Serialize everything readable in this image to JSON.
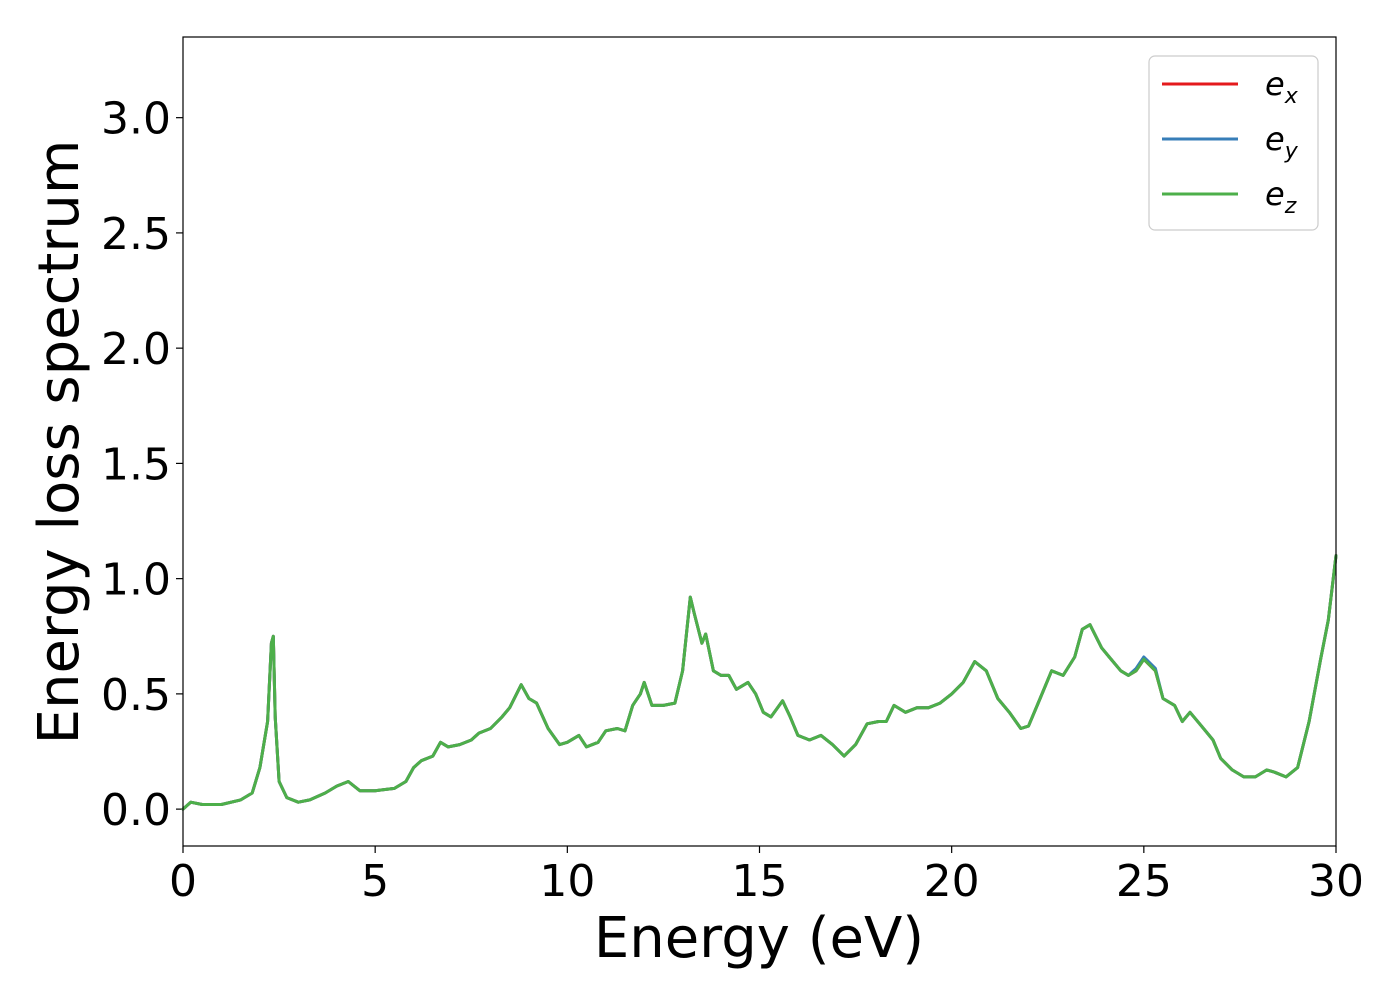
{
  "chart_data": {
    "type": "line",
    "title": "",
    "xlabel": "Energy (eV)",
    "ylabel": "Energy loss spectrum",
    "xlim": [
      0,
      30
    ],
    "ylim": [
      -0.16,
      3.35
    ],
    "xticks": [
      0,
      5,
      10,
      15,
      20,
      25,
      30
    ],
    "xtick_labels": [
      "0",
      "5",
      "10",
      "15",
      "20",
      "25",
      "30"
    ],
    "yticks": [
      0.0,
      0.5,
      1.0,
      1.5,
      2.0,
      2.5,
      3.0
    ],
    "ytick_labels": [
      "0.0",
      "0.5",
      "1.0",
      "1.5",
      "2.0",
      "2.5",
      "3.0"
    ],
    "grid": false,
    "legend_position": "top-right",
    "colors": {
      "e_x": "#e41a1c",
      "e_y": "#377eb8",
      "e_z": "#4daf4a"
    },
    "legend": [
      {
        "key": "e_x",
        "base": "e",
        "sub": "x"
      },
      {
        "key": "e_y",
        "base": "e",
        "sub": "y"
      },
      {
        "key": "e_z",
        "base": "e",
        "sub": "z"
      }
    ],
    "x": [
      0,
      0.2,
      0.5,
      1.0,
      1.5,
      1.8,
      2.0,
      2.2,
      2.3,
      2.35,
      2.4,
      2.5,
      2.7,
      3.0,
      3.3,
      3.7,
      4.0,
      4.3,
      4.6,
      5.0,
      5.5,
      5.8,
      6.0,
      6.2,
      6.5,
      6.7,
      6.9,
      7.2,
      7.5,
      7.7,
      8.0,
      8.3,
      8.5,
      8.8,
      9.0,
      9.2,
      9.5,
      9.8,
      10.0,
      10.3,
      10.5,
      10.8,
      11.0,
      11.3,
      11.5,
      11.7,
      11.9,
      12.0,
      12.2,
      12.5,
      12.8,
      13.0,
      13.2,
      13.3,
      13.5,
      13.6,
      13.8,
      14.0,
      14.2,
      14.4,
      14.7,
      14.9,
      15.1,
      15.3,
      15.6,
      15.8,
      16.0,
      16.3,
      16.6,
      16.9,
      17.2,
      17.5,
      17.8,
      18.1,
      18.3,
      18.5,
      18.8,
      19.1,
      19.4,
      19.7,
      20.0,
      20.3,
      20.6,
      20.9,
      21.2,
      21.5,
      21.8,
      22.0,
      22.3,
      22.6,
      22.9,
      23.2,
      23.4,
      23.6,
      23.9,
      24.1,
      24.4,
      24.6,
      24.8,
      25.0,
      25.3,
      25.5,
      25.8,
      26.0,
      26.2,
      26.5,
      26.8,
      27.0,
      27.3,
      27.6,
      27.9,
      28.2,
      28.4,
      28.7,
      29.0,
      29.3,
      29.6,
      29.8,
      30.0
    ],
    "series": [
      {
        "key": "e_x",
        "values": [
          0.0,
          0.03,
          0.02,
          0.02,
          0.04,
          0.07,
          0.18,
          0.38,
          0.72,
          0.75,
          0.4,
          0.12,
          0.05,
          0.03,
          0.04,
          0.07,
          0.1,
          0.12,
          0.08,
          0.08,
          0.09,
          0.12,
          0.18,
          0.21,
          0.23,
          0.29,
          0.27,
          0.28,
          0.3,
          0.33,
          0.35,
          0.4,
          0.44,
          0.54,
          0.48,
          0.46,
          0.35,
          0.28,
          0.29,
          0.32,
          0.27,
          0.29,
          0.34,
          0.35,
          0.34,
          0.45,
          0.5,
          0.55,
          0.45,
          0.45,
          0.46,
          0.6,
          0.92,
          0.85,
          0.72,
          0.76,
          0.6,
          0.58,
          0.58,
          0.52,
          0.55,
          0.5,
          0.42,
          0.4,
          0.47,
          0.4,
          0.32,
          0.3,
          0.32,
          0.28,
          0.23,
          0.28,
          0.37,
          0.38,
          0.38,
          0.45,
          0.42,
          0.44,
          0.44,
          0.46,
          0.5,
          0.55,
          0.64,
          0.6,
          0.48,
          0.42,
          0.35,
          0.36,
          0.48,
          0.6,
          0.58,
          0.66,
          0.78,
          0.8,
          0.7,
          0.66,
          0.6,
          0.58,
          0.6,
          0.65,
          0.6,
          0.48,
          0.45,
          0.38,
          0.42,
          0.36,
          0.3,
          0.22,
          0.17,
          0.14,
          0.14,
          0.17,
          0.16,
          0.14,
          0.18,
          0.38,
          0.65,
          0.82,
          1.1
        ]
      },
      {
        "key": "e_y",
        "values": [
          0.0,
          0.03,
          0.02,
          0.02,
          0.04,
          0.07,
          0.18,
          0.38,
          0.72,
          0.75,
          0.4,
          0.12,
          0.05,
          0.03,
          0.04,
          0.07,
          0.1,
          0.12,
          0.08,
          0.08,
          0.09,
          0.12,
          0.18,
          0.21,
          0.23,
          0.29,
          0.27,
          0.28,
          0.3,
          0.33,
          0.35,
          0.4,
          0.44,
          0.54,
          0.48,
          0.46,
          0.35,
          0.28,
          0.29,
          0.32,
          0.27,
          0.29,
          0.34,
          0.35,
          0.34,
          0.45,
          0.5,
          0.55,
          0.45,
          0.45,
          0.46,
          0.6,
          0.92,
          0.85,
          0.72,
          0.76,
          0.6,
          0.58,
          0.58,
          0.52,
          0.55,
          0.5,
          0.42,
          0.4,
          0.47,
          0.4,
          0.32,
          0.3,
          0.32,
          0.28,
          0.23,
          0.28,
          0.37,
          0.38,
          0.38,
          0.45,
          0.42,
          0.44,
          0.44,
          0.46,
          0.5,
          0.55,
          0.64,
          0.6,
          0.48,
          0.42,
          0.35,
          0.36,
          0.48,
          0.6,
          0.58,
          0.66,
          0.78,
          0.8,
          0.7,
          0.66,
          0.6,
          0.58,
          0.61,
          0.66,
          0.61,
          0.48,
          0.45,
          0.38,
          0.42,
          0.36,
          0.3,
          0.22,
          0.17,
          0.14,
          0.14,
          0.17,
          0.16,
          0.14,
          0.18,
          0.38,
          0.65,
          0.82,
          1.1
        ]
      },
      {
        "key": "e_z",
        "values": [
          0.0,
          0.03,
          0.02,
          0.02,
          0.04,
          0.07,
          0.18,
          0.38,
          0.72,
          0.75,
          0.4,
          0.12,
          0.05,
          0.03,
          0.04,
          0.07,
          0.1,
          0.12,
          0.08,
          0.08,
          0.09,
          0.12,
          0.18,
          0.21,
          0.23,
          0.29,
          0.27,
          0.28,
          0.3,
          0.33,
          0.35,
          0.4,
          0.44,
          0.54,
          0.48,
          0.46,
          0.35,
          0.28,
          0.29,
          0.32,
          0.27,
          0.29,
          0.34,
          0.35,
          0.34,
          0.45,
          0.5,
          0.55,
          0.45,
          0.45,
          0.46,
          0.6,
          0.92,
          0.85,
          0.72,
          0.76,
          0.6,
          0.58,
          0.58,
          0.52,
          0.55,
          0.5,
          0.42,
          0.4,
          0.47,
          0.4,
          0.32,
          0.3,
          0.32,
          0.28,
          0.23,
          0.28,
          0.37,
          0.38,
          0.38,
          0.45,
          0.42,
          0.44,
          0.44,
          0.46,
          0.5,
          0.55,
          0.64,
          0.6,
          0.48,
          0.42,
          0.35,
          0.36,
          0.48,
          0.6,
          0.58,
          0.66,
          0.78,
          0.8,
          0.7,
          0.66,
          0.6,
          0.58,
          0.6,
          0.65,
          0.6,
          0.48,
          0.45,
          0.38,
          0.42,
          0.36,
          0.3,
          0.22,
          0.17,
          0.14,
          0.14,
          0.17,
          0.16,
          0.14,
          0.18,
          0.38,
          0.65,
          0.82,
          1.1
        ]
      }
    ]
  }
}
